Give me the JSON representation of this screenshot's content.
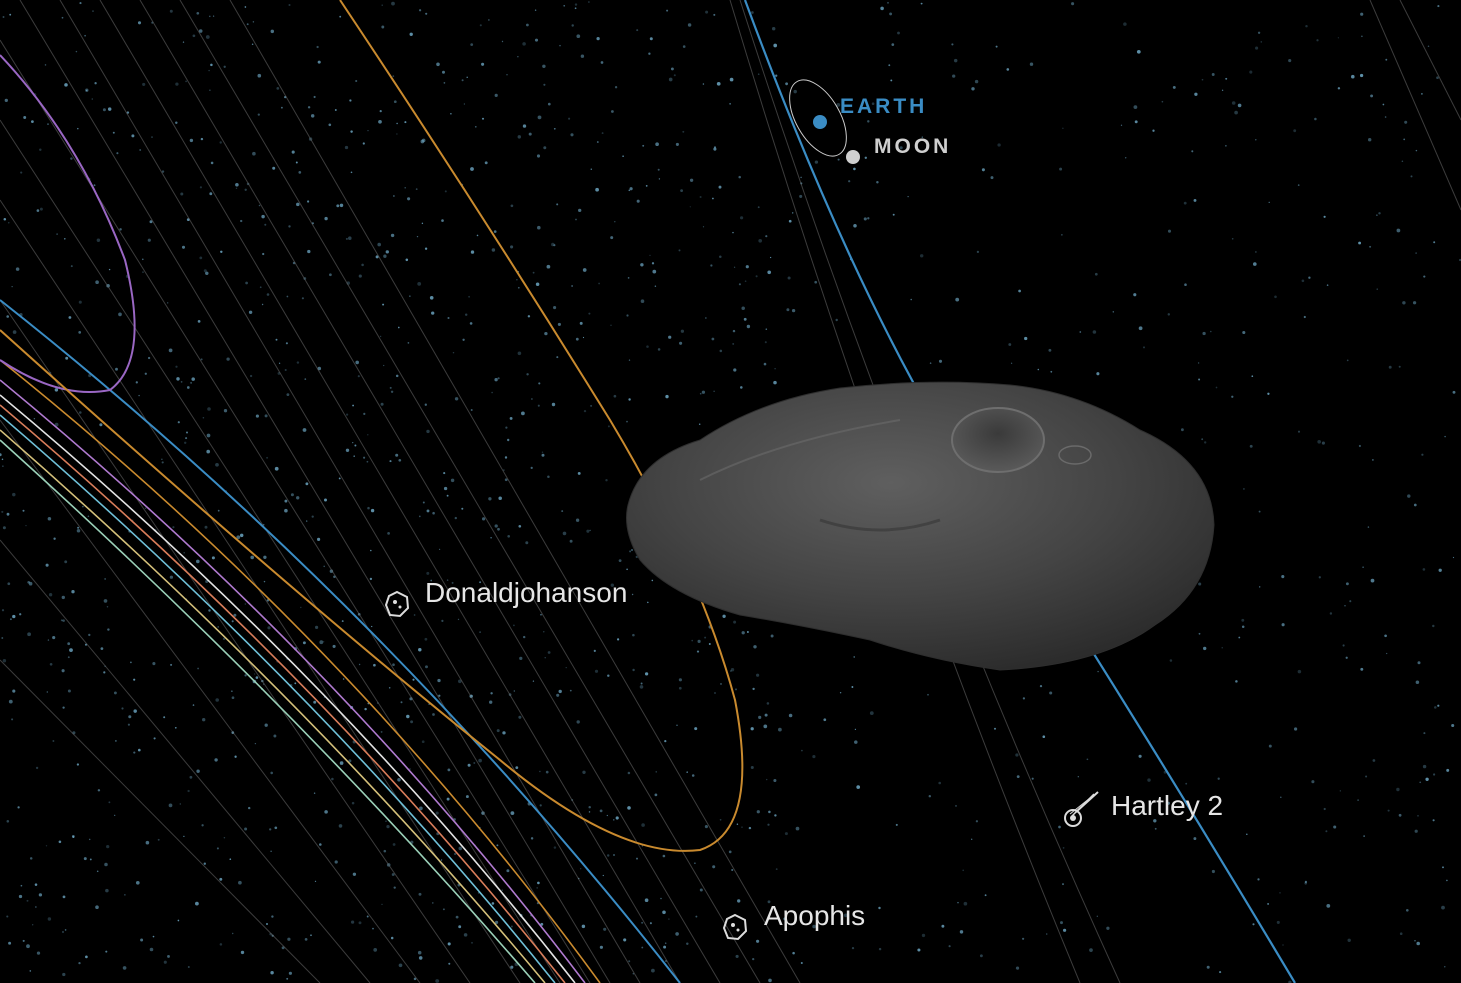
{
  "labels": {
    "earth": "EARTH",
    "moon": "MOON",
    "donaldjohanson": "Donaldjohanson",
    "apophis": "Apophis",
    "hartley2": "Hartley 2"
  },
  "icons": {
    "donaldjohanson": "asteroid-icon",
    "apophis": "asteroid-icon",
    "hartley2": "comet-icon"
  },
  "colors": {
    "background": "#000000",
    "earth": "#3a8cc4",
    "moon": "#cfcfcf",
    "orbit_orange": "#c98a2e",
    "orbit_purple": "#9a67c4",
    "orbit_blue": "#3a8cc4",
    "orbit_faint": "#6d6d6d",
    "stars": "#6fa9c6",
    "asteroid": "#4a4a4a"
  }
}
